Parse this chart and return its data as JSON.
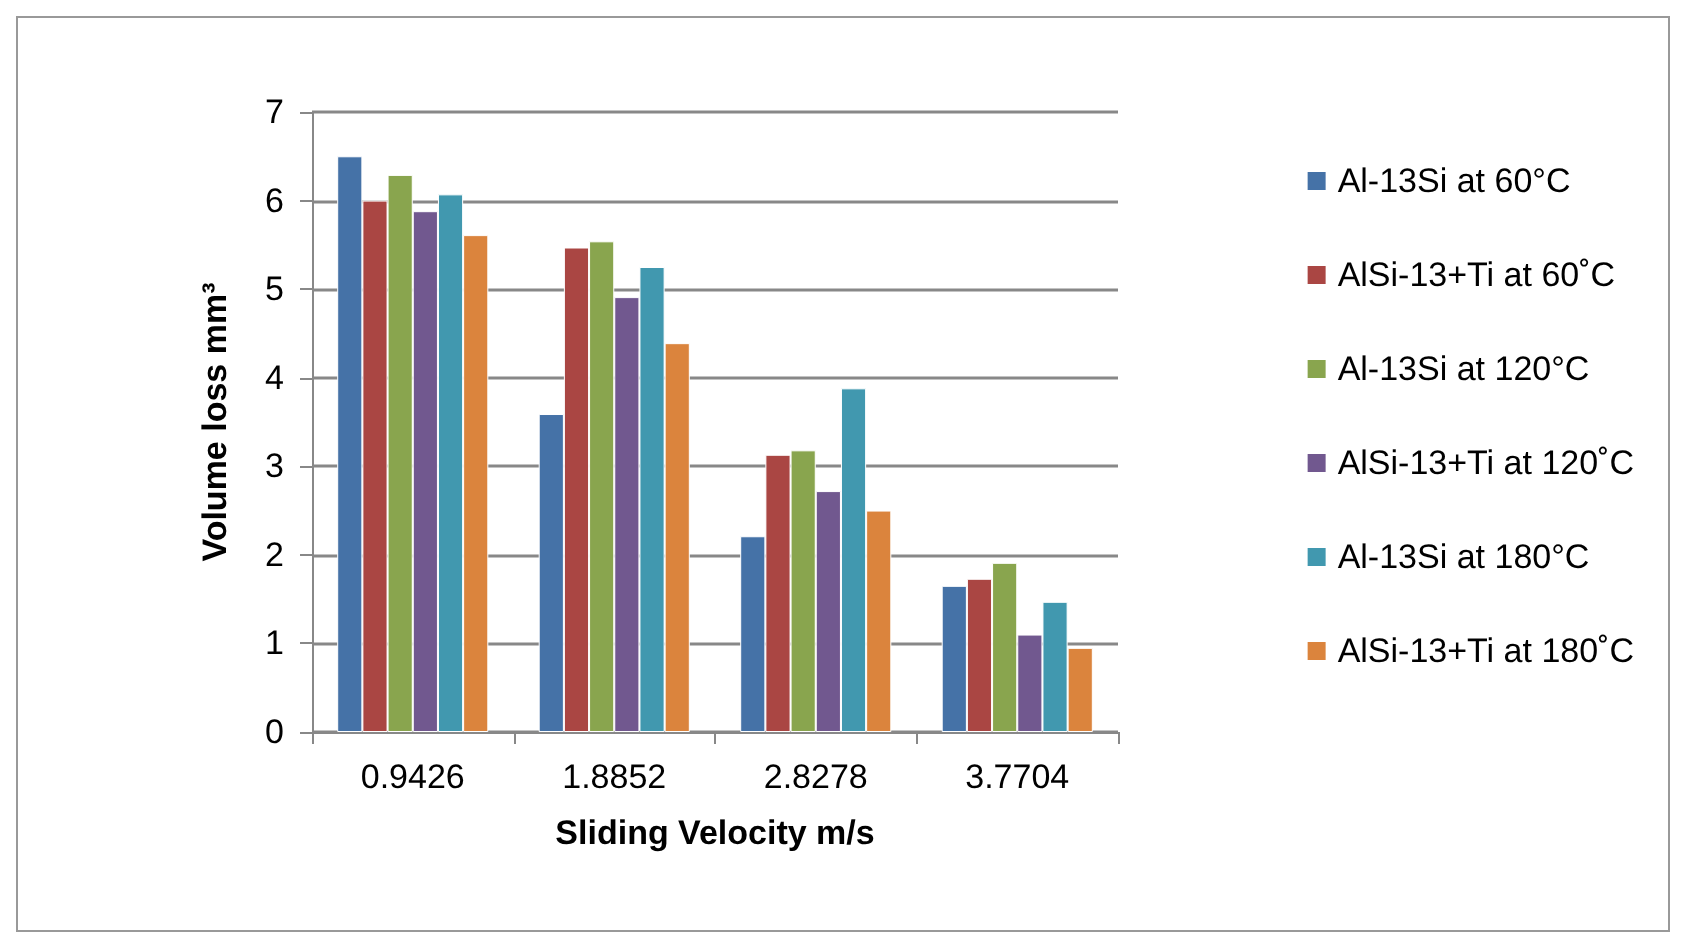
{
  "chart_data": {
    "type": "bar",
    "xlabel": "Sliding Velocity m/s",
    "ylabel": "Volume loss mm³",
    "categories": [
      "0.9426",
      "1.8852",
      "2.8278",
      "3.7704"
    ],
    "series": [
      {
        "name": "Al-13Si at 60°C",
        "color": "#4572a7",
        "values": [
          6.5,
          3.59,
          2.21,
          1.65
        ]
      },
      {
        "name": "AlSi-13+Ti at 60˚C",
        "color": "#aa4643",
        "values": [
          6.0,
          5.47,
          3.13,
          1.73
        ]
      },
      {
        "name": "Al-13Si at 120°C",
        "color": "#89a54e",
        "values": [
          6.29,
          5.54,
          3.18,
          1.91
        ]
      },
      {
        "name": "AlSi-13+Ti at 120˚C",
        "color": "#71588f",
        "values": [
          5.88,
          4.91,
          2.72,
          1.1
        ]
      },
      {
        "name": "Al-13Si at 180°C",
        "color": "#4198af",
        "values": [
          6.07,
          5.25,
          3.88,
          1.47
        ]
      },
      {
        "name": "AlSi-13+Ti at 180˚C",
        "color": "#db843d",
        "values": [
          5.61,
          4.39,
          2.5,
          0.95
        ]
      }
    ],
    "ylim": [
      0,
      7
    ],
    "yticks": [
      0,
      1,
      2,
      3,
      4,
      5,
      6,
      7
    ],
    "grid": "y",
    "legend": "right"
  }
}
